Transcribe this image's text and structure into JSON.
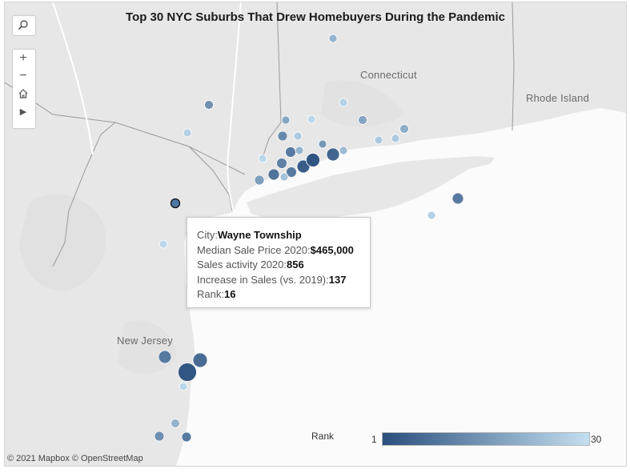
{
  "title": "Top 30 NYC Suburbs That Drew Homebuyers During the Pandemic",
  "map_labels": {
    "connecticut": "Connecticut",
    "rhode_island": "Rhode Island",
    "new_jersey": "New Jersey"
  },
  "controls": {
    "search_icon": "search-icon",
    "zoom_in": "+",
    "zoom_out": "−",
    "home_icon": "home-icon",
    "pan_arrow": "▶"
  },
  "tooltip": {
    "city_label": "City:",
    "city_value": "Wayne  Township",
    "price_label": "Median Sale Price 2020:",
    "price_value": "$465,000",
    "sales_label": "Sales activity 2020:",
    "sales_value": "856",
    "increase_label": "Increase in Sales (vs. 2019):",
    "increase_value": "137",
    "rank_label": "Rank:",
    "rank_value": "16"
  },
  "legend": {
    "title": "Rank",
    "min": "1",
    "max": "30",
    "color_dark": "#2a4f7d",
    "color_light": "#c3dff0"
  },
  "attribution": "© 2021 Mapbox © OpenStreetMap",
  "colors": {
    "land": "#e6e6e6",
    "water": "#ffffff",
    "border": "#9a9a9a"
  }
}
